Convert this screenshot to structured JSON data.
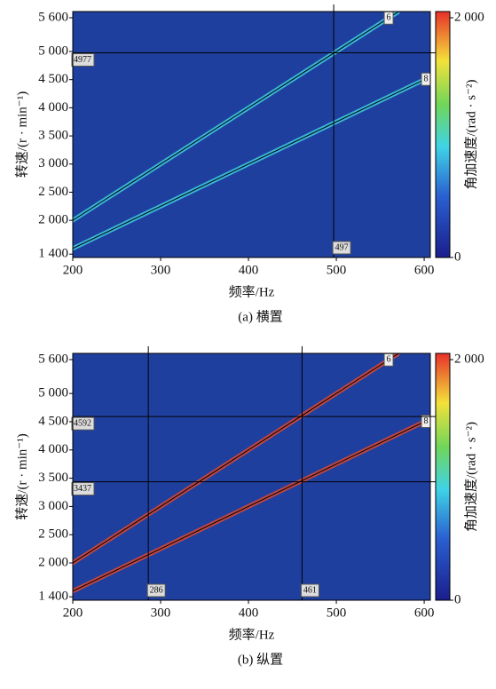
{
  "chart_data": [
    {
      "type": "heatmap",
      "xlabel": "频率/Hz",
      "ylabel": "转速/(r · min⁻¹)",
      "caption": "(a) 横置",
      "xlim": [
        200,
        607
      ],
      "xticks": [
        200,
        300,
        400,
        500,
        600
      ],
      "ylim": [
        1340,
        5710
      ],
      "yticks": [
        {
          "value": 1400,
          "label": "1 400"
        },
        {
          "value": 2000,
          "label": "2 000"
        },
        {
          "value": 2500,
          "label": "2 500"
        },
        {
          "value": 3000,
          "label": "3 000"
        },
        {
          "value": 3500,
          "label": "3 500"
        },
        {
          "value": 4000,
          "label": "4 000"
        },
        {
          "value": 4500,
          "label": "4 500"
        },
        {
          "value": 5000,
          "label": "5 000"
        },
        {
          "value": 5600,
          "label": "5 600"
        }
      ],
      "colorbar_label": "角加速度/(rad · s⁻²)",
      "clim": [
        0,
        2000
      ],
      "cticks": [
        0,
        {
          "value": 2000,
          "label": "2 000"
        }
      ],
      "orders": [
        6,
        8
      ],
      "line_color": "#3fd3e6",
      "background": "#1f3f9e",
      "x_cursors": [
        497
      ],
      "y_cursors": [
        4977
      ]
    },
    {
      "type": "heatmap",
      "xlabel": "频率/Hz",
      "ylabel": "转速/(r · min⁻¹)",
      "caption": "(b) 纵置",
      "xlim": [
        200,
        607
      ],
      "xticks": [
        200,
        300,
        400,
        500,
        600
      ],
      "ylim": [
        1340,
        5710
      ],
      "yticks": [
        {
          "value": 1400,
          "label": "1 400"
        },
        {
          "value": 2000,
          "label": "2 000"
        },
        {
          "value": 2500,
          "label": "2 500"
        },
        {
          "value": 3000,
          "label": "3 000"
        },
        {
          "value": 3500,
          "label": "3 500"
        },
        {
          "value": 4000,
          "label": "4 000"
        },
        {
          "value": 4500,
          "label": "4 500"
        },
        {
          "value": 5000,
          "label": "5 000"
        },
        {
          "value": 5600,
          "label": "5 600"
        }
      ],
      "colorbar_label": "角加速度/(rad · s⁻²)",
      "clim": [
        0,
        2000
      ],
      "cticks": [
        0,
        {
          "value": 2000,
          "label": "2 000"
        }
      ],
      "orders": [
        6,
        8
      ],
      "line_color": "#e8482a",
      "background": "#1f3f9e",
      "x_cursors": [
        286,
        461
      ],
      "y_cursors": [
        4592,
        3437
      ]
    }
  ]
}
